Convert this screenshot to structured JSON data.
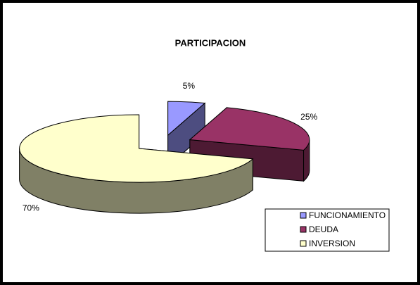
{
  "chart_data": {
    "type": "pie",
    "title": "PARTICIPACION",
    "categories": [
      "FUNCIONAMIENTO",
      "DEUDA",
      "INVERSION"
    ],
    "values": [
      5,
      25,
      70
    ],
    "value_labels": [
      "5%",
      "25%",
      "70%"
    ],
    "colors": [
      "#9999ff",
      "#993366",
      "#ffffcc"
    ],
    "legend": "bottom-right"
  }
}
